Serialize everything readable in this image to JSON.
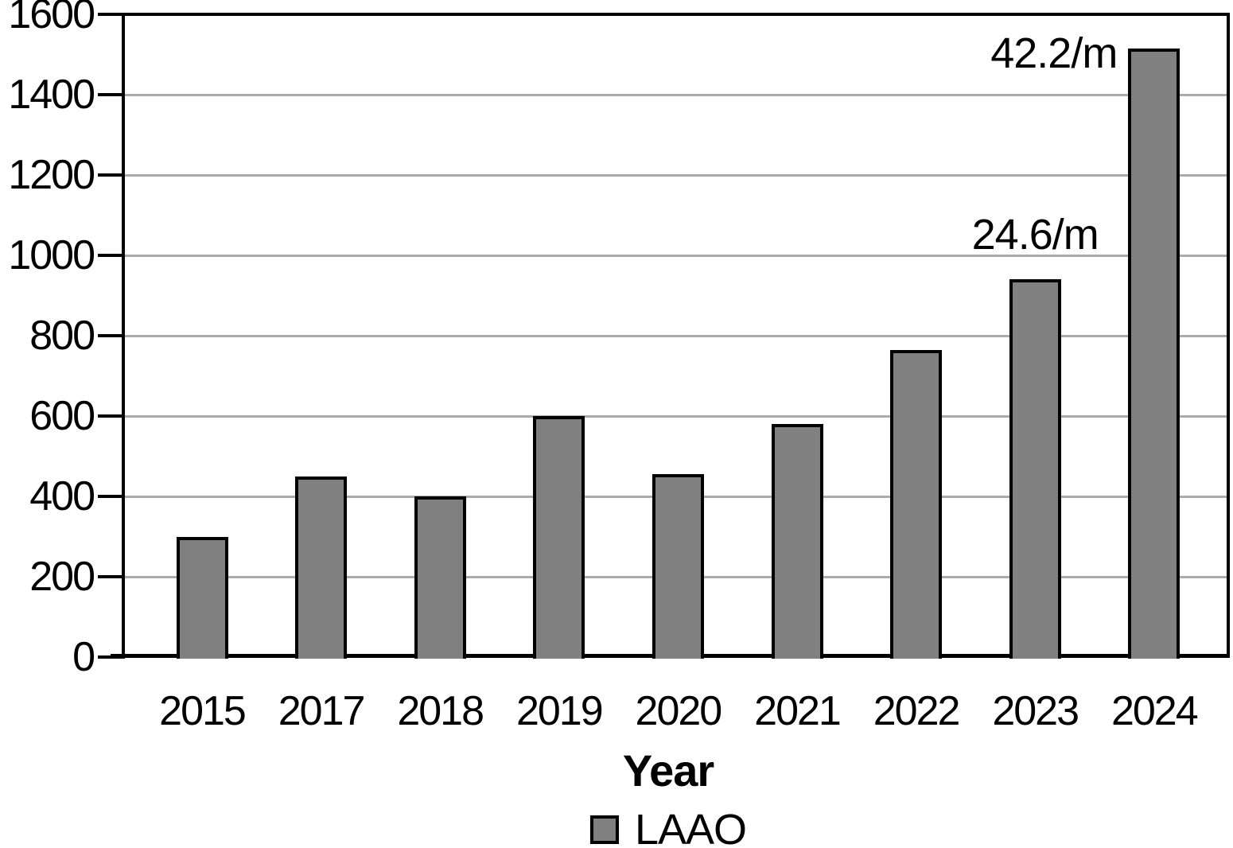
{
  "chart_data": {
    "type": "bar",
    "title": "",
    "categories": [
      "2015",
      "2017",
      "2018",
      "2019",
      "2020",
      "2021",
      "2022",
      "2023",
      "2024"
    ],
    "values": [
      300,
      450,
      400,
      600,
      455,
      580,
      765,
      940,
      1515
    ],
    "series_name": "LAAO",
    "xlabel": "Year",
    "ylabel": "",
    "ylim": [
      0,
      1600
    ],
    "yticks": [
      0,
      200,
      400,
      600,
      800,
      1000,
      1200,
      1400,
      1600
    ],
    "grid": true,
    "legend_position": "bottom-center",
    "annotations": [
      {
        "text": "24.6/m",
        "target_category": "2023",
        "placement": "above-bar"
      },
      {
        "text": "42.2/m",
        "target_category": "2024",
        "placement": "left-of-bar-top"
      }
    ],
    "colors": {
      "bar_fill": "#808080",
      "bar_border": "#000000",
      "gridline": "#ababab",
      "axis": "#000000",
      "text": "#000000",
      "background": "#ffffff"
    }
  }
}
